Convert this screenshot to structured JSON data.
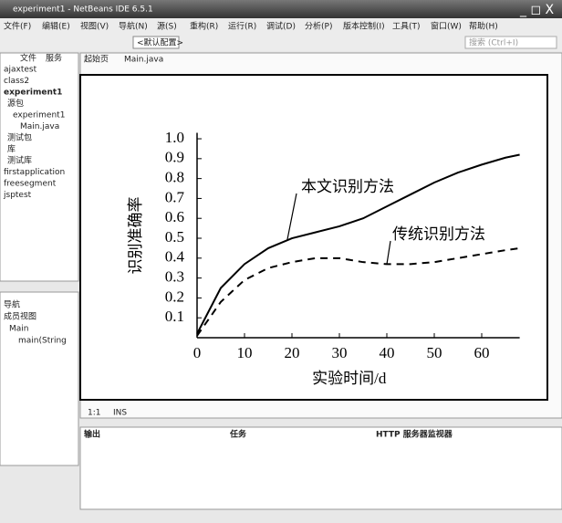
{
  "window": {
    "title": "experiment1 - NetBeans IDE 6.5.1",
    "menu": [
      "文件(F)",
      "编辑(E)",
      "视图(V)",
      "导航(N)",
      "源(S)",
      "重构(R)",
      "运行(R)",
      "调试(D)",
      "分析(P)",
      "版本控制(I)",
      "工具(T)",
      "窗口(W)",
      "帮助(H)"
    ],
    "config": "<默认配置>",
    "search": "搜索 (Ctrl+I)",
    "left_tabs": [
      "文件",
      "服务"
    ],
    "editor_tabs": [
      "起始页",
      "Main.java"
    ],
    "tree": [
      "ajaxtest",
      "class2",
      "experiment1",
      "源包",
      "experiment1",
      "Main.java",
      "测试包",
      "库",
      "测试库",
      "firstapplication",
      "freesegment",
      "jsptest"
    ],
    "navigator": [
      "导航",
      "成员视图",
      "Main",
      "main(String"
    ],
    "status": [
      "1:1",
      "INS"
    ],
    "bottom_tabs": [
      "输出",
      "任务",
      "HTTP 服务器监视器"
    ]
  },
  "chart_data": {
    "type": "line",
    "x_label": "实验时间/d",
    "y_label": "识别准确率",
    "xlim": [
      0,
      68
    ],
    "xticks": [
      0,
      10,
      20,
      30,
      40,
      50,
      60
    ],
    "ylim": [
      0,
      1.03
    ],
    "yticks": [
      0.1,
      0.2,
      0.3,
      0.4,
      0.5,
      0.6,
      0.7,
      0.8,
      0.9,
      {
        "value": 1,
        "label": "1.0"
      }
    ],
    "x": [
      0,
      5,
      10,
      15,
      20,
      25,
      30,
      35,
      40,
      45,
      50,
      55,
      60,
      65,
      68
    ],
    "series": [
      {
        "name": "本文识别方法",
        "color": "#000000",
        "dash": false,
        "values": [
          0.02,
          0.25,
          0.37,
          0.45,
          0.5,
          0.53,
          0.56,
          0.6,
          0.66,
          0.72,
          0.78,
          0.83,
          0.87,
          0.905,
          0.92
        ]
      },
      {
        "name": "传统识别方法",
        "color": "#000000",
        "dash": true,
        "values": [
          0.01,
          0.18,
          0.29,
          0.35,
          0.38,
          0.4,
          0.4,
          0.38,
          0.37,
          0.37,
          0.38,
          0.4,
          0.42,
          0.44,
          0.45
        ]
      }
    ]
  }
}
